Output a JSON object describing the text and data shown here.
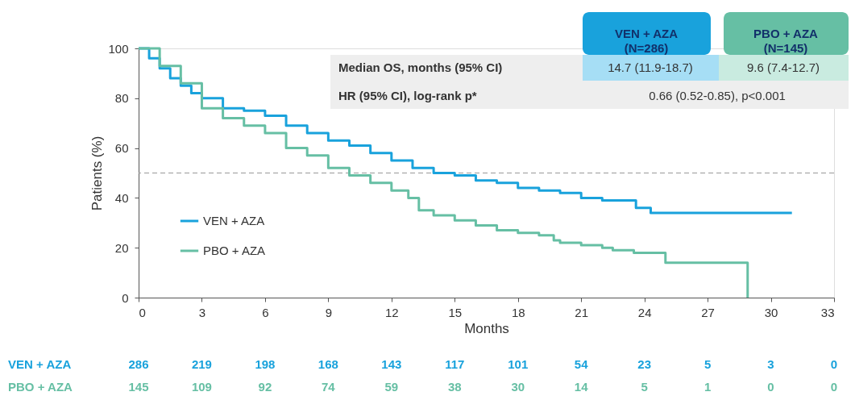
{
  "chart_data": {
    "type": "step",
    "xlabel": "Months",
    "ylabel": "Patients (%)",
    "xlim": [
      0,
      33
    ],
    "xticks": [
      0,
      3,
      6,
      9,
      12,
      15,
      18,
      21,
      24,
      27,
      30,
      33
    ],
    "ylim": [
      0,
      100
    ],
    "yticks": [
      0,
      20,
      40,
      60,
      80,
      100
    ],
    "grid": false,
    "legend": "bottom left",
    "line_style": "solid",
    "marker": "none",
    "ref_lines": [
      {
        "axis": "y",
        "value": 50,
        "color": "#999999",
        "line_style": "dashed"
      }
    ],
    "series": [
      {
        "name": "VEN + AZA",
        "color": "#19a2dc",
        "x": [
          0,
          0.5,
          1,
          1.5,
          2,
          2.5,
          3,
          4,
          5,
          6,
          7,
          8,
          9,
          10,
          11,
          12,
          13,
          14,
          15,
          16,
          17,
          18,
          19,
          20,
          21,
          22,
          23.6,
          24.3,
          31
        ],
        "values": [
          100,
          96,
          92,
          88,
          85,
          82,
          80,
          76,
          75,
          73,
          69,
          66,
          63,
          61,
          58,
          55,
          52,
          50,
          49,
          47,
          46,
          44,
          43,
          42,
          40,
          39,
          36,
          34,
          34
        ]
      },
      {
        "name": "PBO + AZA",
        "color": "#66bfa4",
        "x": [
          0,
          1,
          2,
          3,
          4,
          5,
          6,
          7,
          8,
          9,
          10,
          11,
          12,
          12.8,
          13.3,
          14,
          15,
          16,
          17,
          18,
          19,
          19.7,
          20,
          21,
          22,
          22.5,
          23.5,
          25,
          28.9,
          28.9
        ],
        "values": [
          100,
          93,
          86,
          76,
          72,
          69,
          66,
          60,
          57,
          52,
          49,
          46,
          43,
          40,
          35,
          33,
          31,
          29,
          27,
          26,
          25,
          23,
          22,
          21,
          20,
          19,
          18,
          14,
          14,
          0
        ]
      }
    ],
    "annotations": [
      "VEN + AZA\n(N=286)",
      "PBO + AZA\n(N=145)",
      "Median OS, months (95% CI)",
      "14.7 (11.9-18.7)",
      "9.6 (7.4-12.7)",
      "HR (95% CI), log-rank p*",
      "0.66 (0.52-0.85), p<0.001",
      "VEN + AZA",
      "286",
      "219",
      "198",
      "168",
      "143",
      "117",
      "101",
      "54",
      "23",
      "5",
      "3",
      "0",
      "PBO + AZA",
      "145",
      "109",
      "92",
      "74",
      "59",
      "38",
      "30",
      "14",
      "5",
      "1",
      "0",
      "0"
    ]
  }
}
